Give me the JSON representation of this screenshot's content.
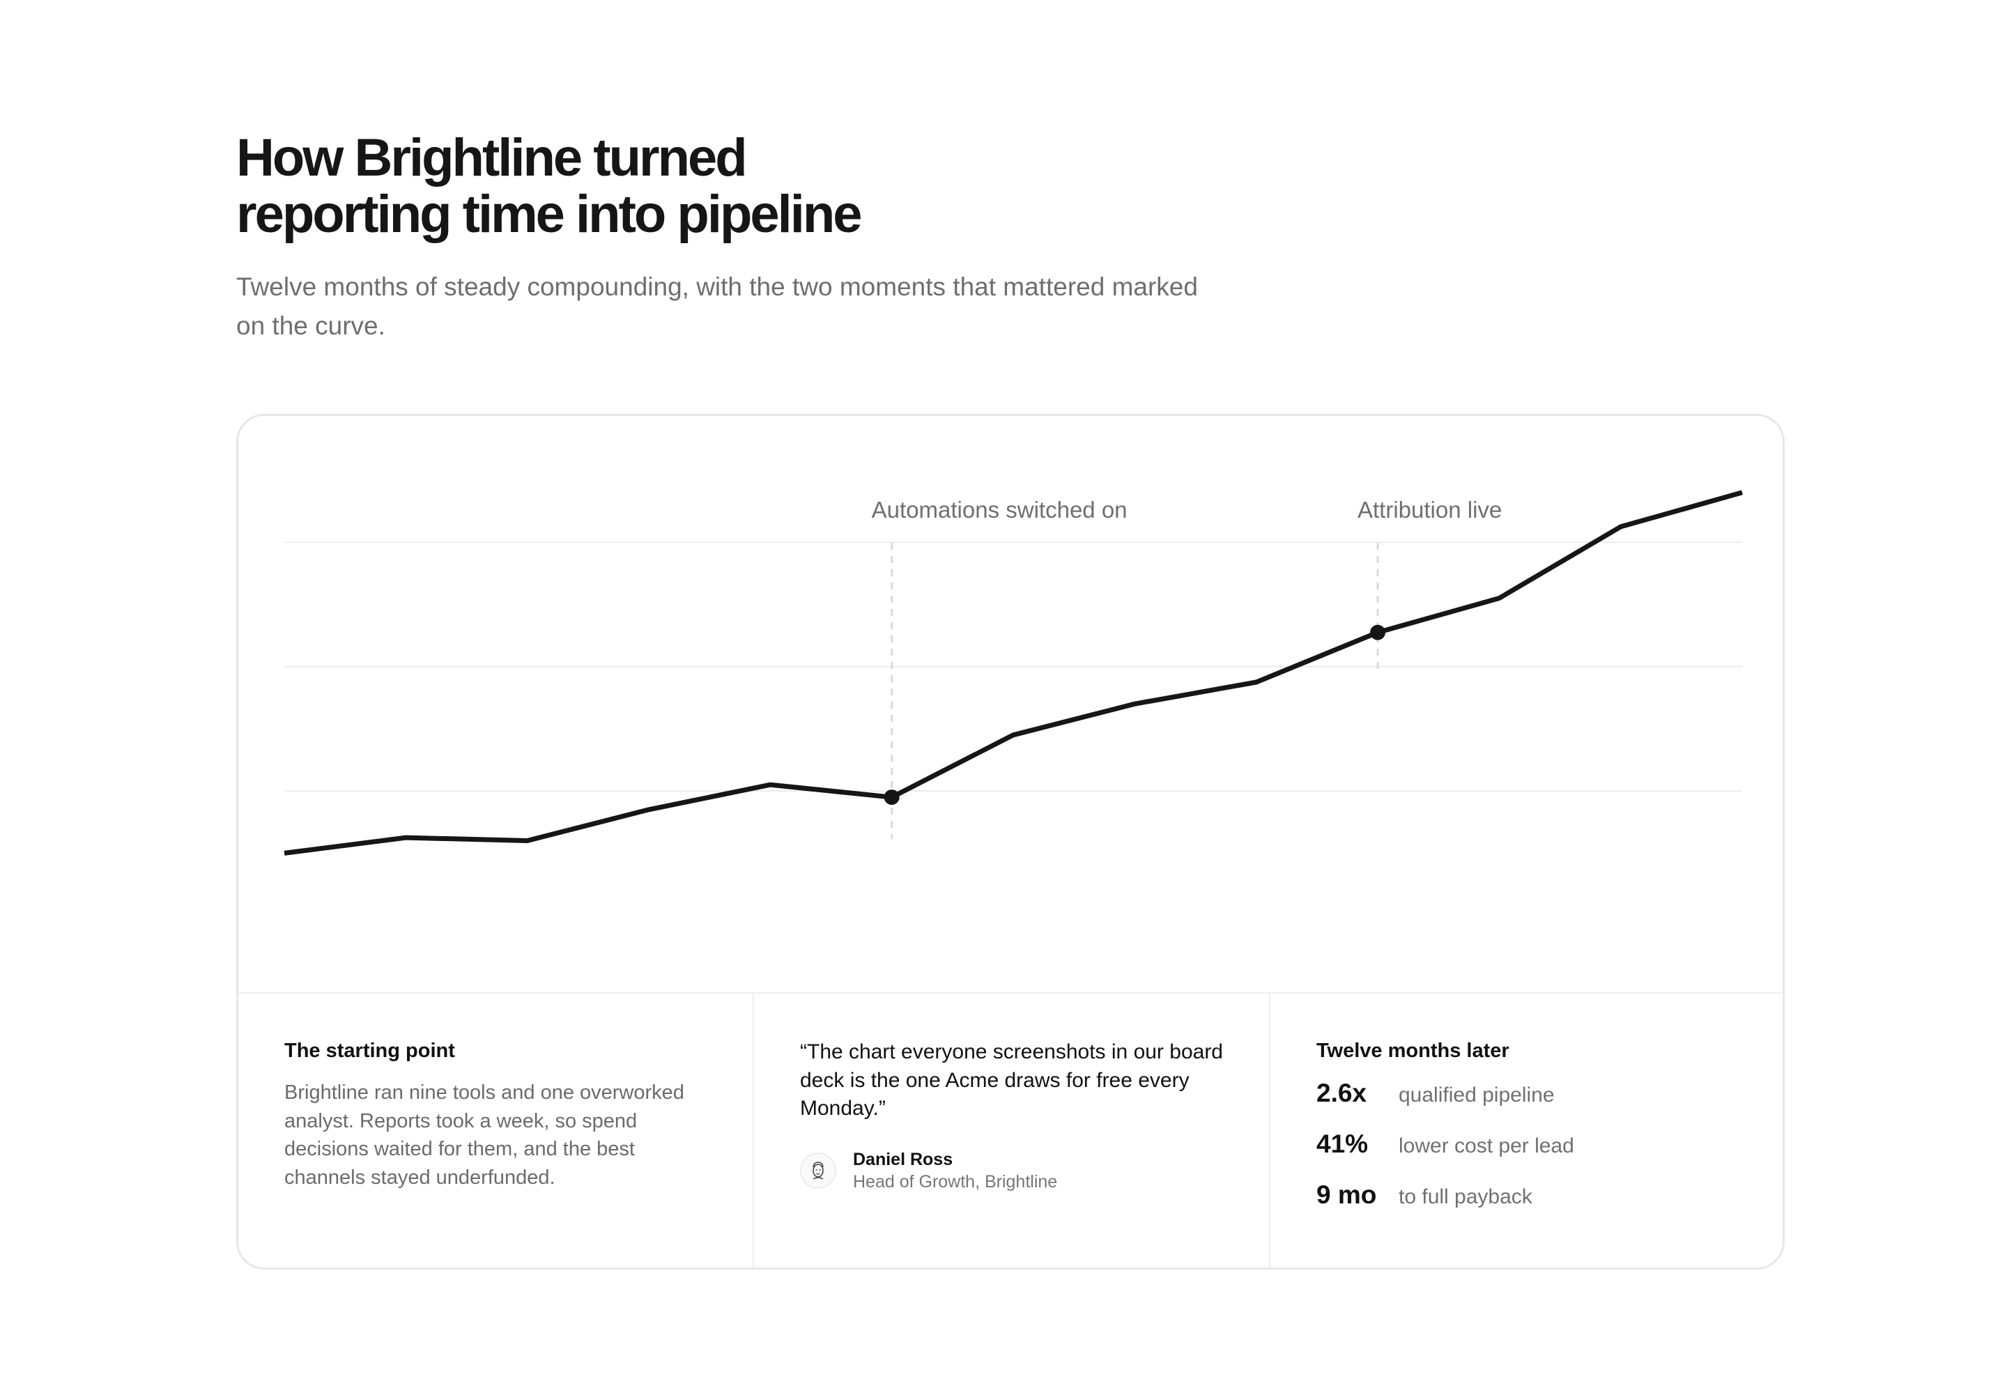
{
  "header": {
    "title_line1": "How Brightline turned",
    "title_line2": "reporting time into pipeline",
    "subtitle": "Twelve months of steady compounding, with the two moments that mattered marked on the curve."
  },
  "chart_data": {
    "type": "line",
    "title": "",
    "xlabel": "",
    "ylabel": "",
    "x": [
      1,
      2,
      3,
      4,
      5,
      6,
      7,
      8,
      9,
      10,
      11,
      12,
      13
    ],
    "y": [
      0.0,
      0.25,
      0.2,
      0.7,
      1.1,
      0.9,
      1.9,
      2.4,
      2.75,
      3.55,
      4.1,
      5.25,
      5.8
    ],
    "ylim": [
      -0.5,
      6.0
    ],
    "gridlines_y": [
      1.0,
      3.0,
      5.0
    ],
    "grid": true,
    "annotations": [
      {
        "x": 6,
        "label": "Automations switched on"
      },
      {
        "x": 10,
        "label": "Attribution live"
      }
    ],
    "line_color": "#161616",
    "grid_color": "#ececec",
    "marker_color": "#161616"
  },
  "footer": {
    "starting_point": {
      "title": "The starting point",
      "body": "Brightline ran nine tools and one overworked analyst. Reports took a week, so spend decisions waited for them, and the best channels stayed underfunded."
    },
    "testimonial": {
      "quote": "“The chart everyone screenshots in our board deck is the one Acme draws for free every Monday.”",
      "name": "Daniel Ross",
      "role": "Head of Growth, Brightline",
      "avatar_icon": "person-face-icon"
    },
    "results": {
      "title": "Twelve months later",
      "stats": [
        {
          "value": "2.6x",
          "label": "qualified pipeline"
        },
        {
          "value": "41%",
          "label": "lower cost per lead"
        },
        {
          "value": "9 mo",
          "label": "to full payback"
        }
      ]
    }
  }
}
